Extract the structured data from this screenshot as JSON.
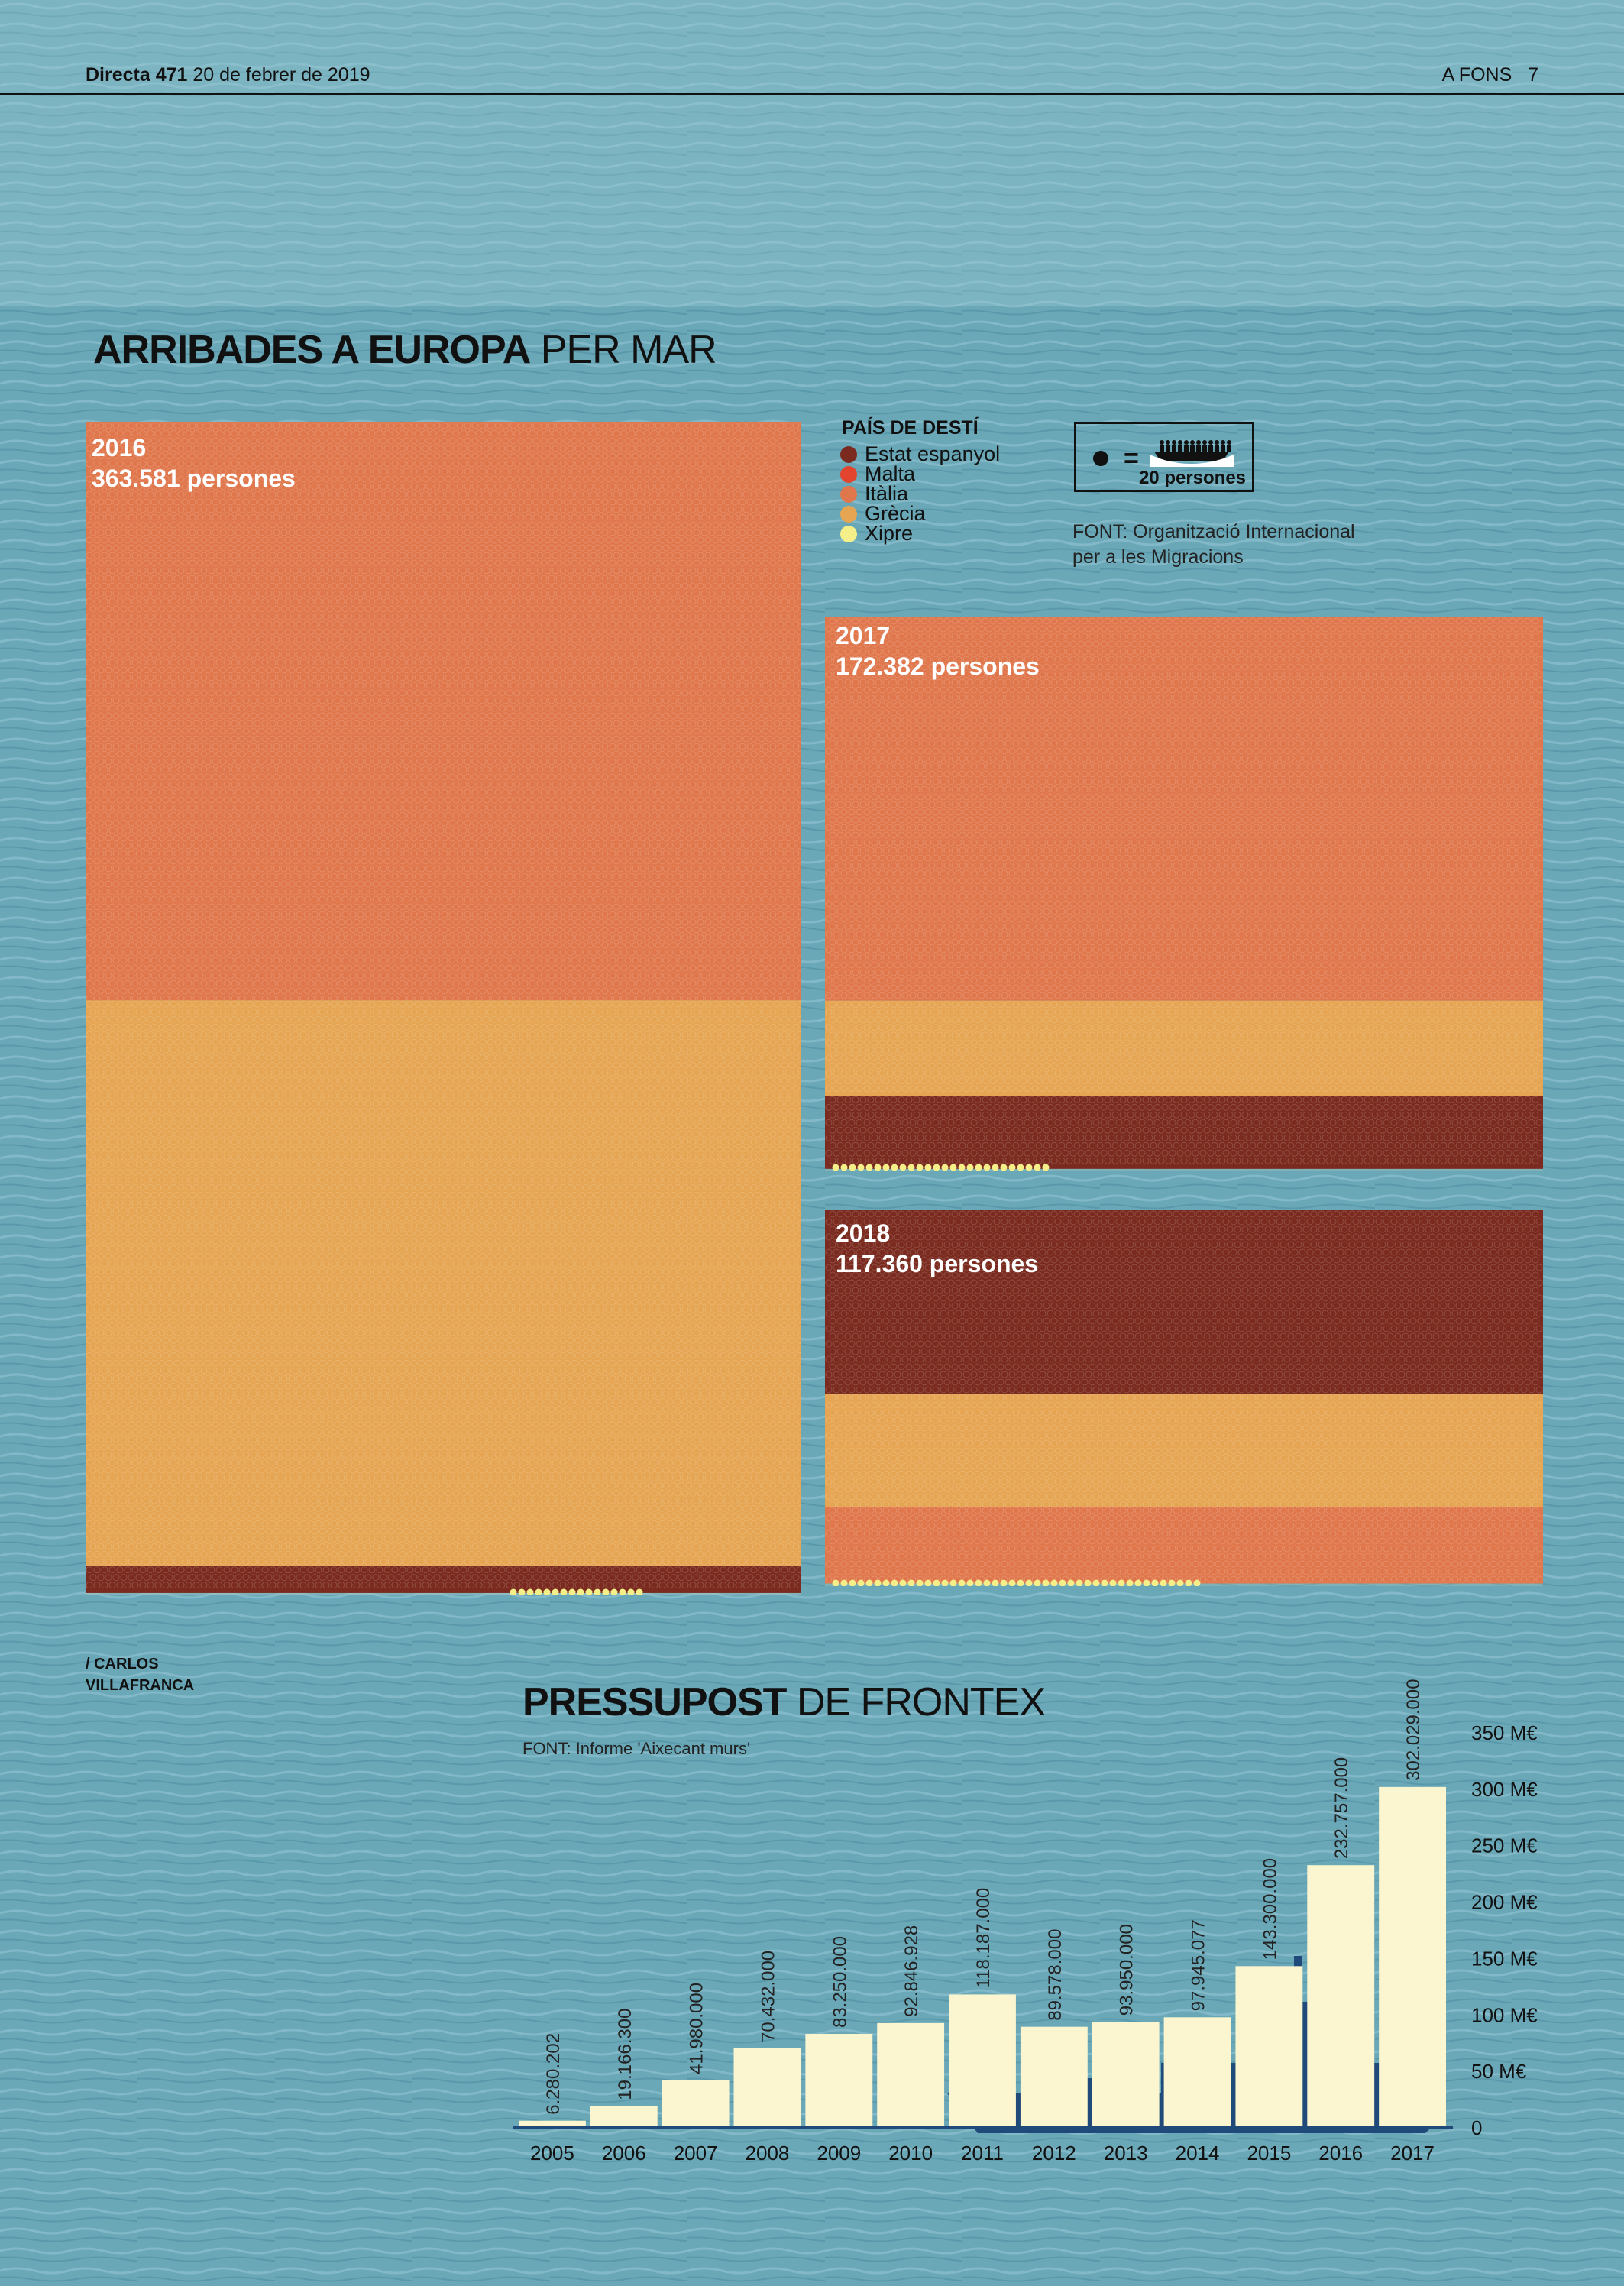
{
  "header": {
    "publication": "Directa 471",
    "date": "20 de febrer de 2019",
    "section": "A FONS",
    "page": "7"
  },
  "arrivals": {
    "title_bold": "ARRIBADES A EUROPA",
    "title_light": "PER MAR",
    "legend_title": "PAÍS DE DESTÍ",
    "countries": [
      {
        "name": "Estat espanyol",
        "color": "#7a2a1e"
      },
      {
        "name": "Malta",
        "color": "#e2442e"
      },
      {
        "name": "Itàlia",
        "color": "#e0774c"
      },
      {
        "name": "Grècia",
        "color": "#e6a552"
      },
      {
        "name": "Xipre",
        "color": "#f5ef8a"
      }
    ],
    "key": {
      "equals": "=",
      "label": "20 persones"
    },
    "source": [
      "FONT: Organització Internacional",
      "per a les Migracions"
    ],
    "years": [
      {
        "year": "2016",
        "total": "363.581 persones",
        "shares": [
          0.023,
          0.0,
          0.493,
          0.482,
          0.002
        ]
      },
      {
        "year": "2017",
        "total": "172.382 persones",
        "shares": [
          0.132,
          0.001,
          0.693,
          0.172,
          0.002
        ]
      },
      {
        "year": "2018",
        "total": "117.360 persones",
        "shares": [
          0.48,
          0.001,
          0.201,
          0.296,
          0.006
        ]
      }
    ]
  },
  "credit": [
    "/ CARLOS",
    "VILLAFRANCA"
  ],
  "chart_data": {
    "type": "bar",
    "title_bold": "PRESSUPOST",
    "title_light": "DE FRONTEX",
    "source": "FONT: Informe 'Aixecant murs'",
    "categories": [
      "2005",
      "2006",
      "2007",
      "2008",
      "2009",
      "2010",
      "2011",
      "2012",
      "2013",
      "2014",
      "2015",
      "2016",
      "2017"
    ],
    "values": [
      6280202,
      19166300,
      41980000,
      70432000,
      83250000,
      92846928,
      118187000,
      89578000,
      93950000,
      97945077,
      143300000,
      232757000,
      302029000
    ],
    "value_labels": [
      "6.280.202",
      "19.166.300",
      "41.980.000",
      "70.432.000",
      "83.250.000",
      "92.846.928",
      "118.187.000",
      "89.578.000",
      "93.950.000",
      "97.945.077",
      "143.300.000",
      "232.757.000",
      "302.029.000"
    ],
    "yticks": [
      0,
      50,
      100,
      150,
      200,
      250,
      300,
      350
    ],
    "ytick_labels": [
      "0",
      "50 M€",
      "100 M€",
      "150 M€",
      "200 M€",
      "250 M€",
      "300 M€",
      "350 M€"
    ],
    "ylim": [
      0,
      350000000
    ],
    "bar_color": "#fbf6cf",
    "ship_color": "#1f4a7a"
  }
}
